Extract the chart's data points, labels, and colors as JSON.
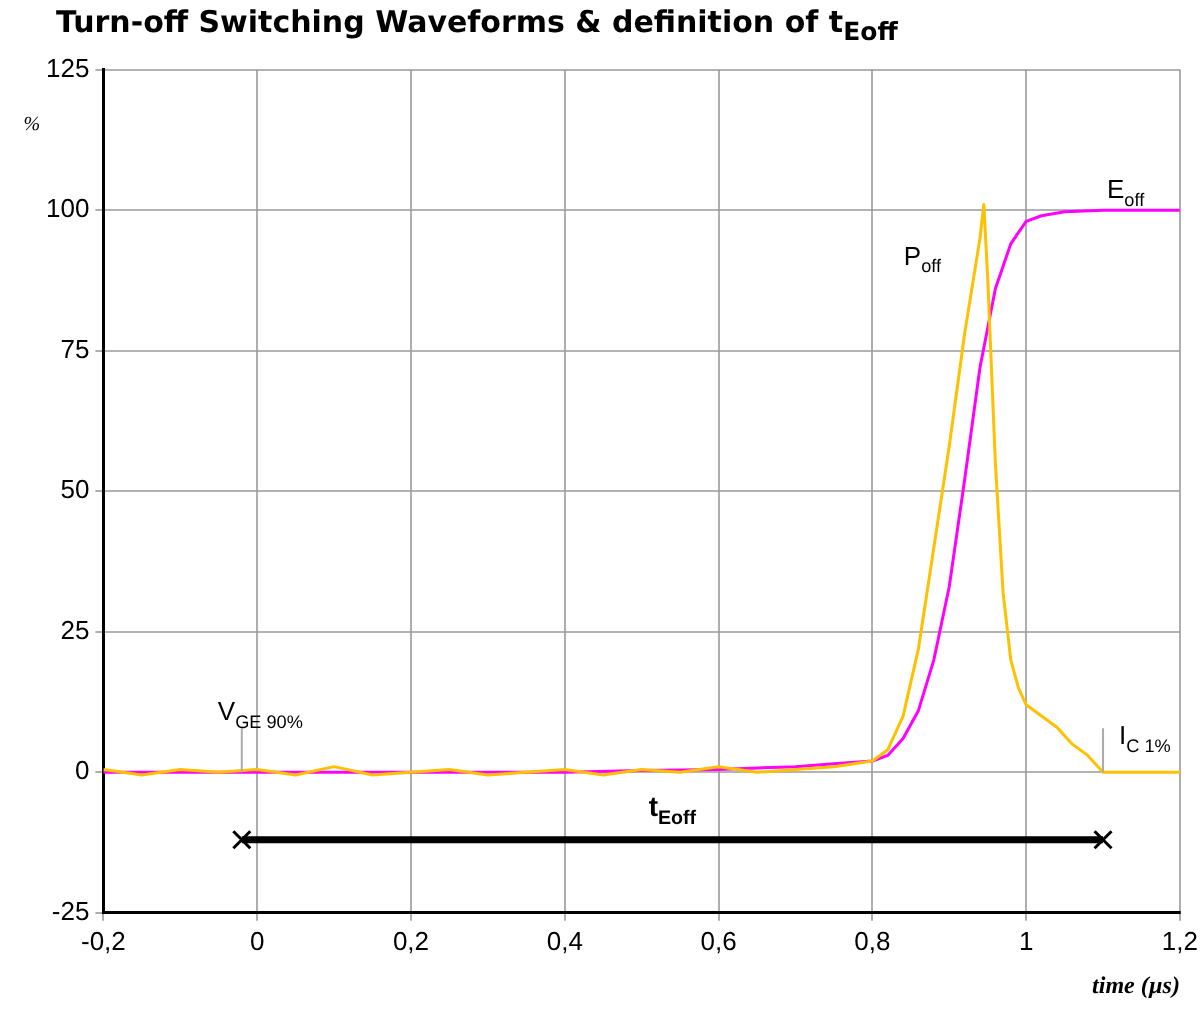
{
  "chart_data": {
    "type": "line",
    "title": "Turn-off Switching Waveforms & definition of t$_{Eoff}$",
    "xlabel": "time (µs)",
    "ylabel": "%",
    "xlim": [
      -0.2,
      1.2
    ],
    "ylim": [
      -25,
      125
    ],
    "xticks": [
      {
        "value": -0.2,
        "label": "-0,2"
      },
      0,
      {
        "value": 0.2,
        "label": "0,2"
      },
      {
        "value": 0.4,
        "label": "0,4"
      },
      {
        "value": 0.6,
        "label": "0,6"
      },
      {
        "value": 0.8,
        "label": "0,8"
      },
      1,
      {
        "value": 1.2,
        "label": "1,2"
      }
    ],
    "yticks": [
      -25,
      0,
      25,
      50,
      75,
      100,
      125
    ],
    "grid": true,
    "legend": false,
    "marker": "none",
    "line_style": "solid",
    "series": [
      {
        "name": "P$_{off}$",
        "color": "#ffc000",
        "x": [
          -0.2,
          -0.15,
          -0.1,
          -0.05,
          0,
          0.05,
          0.1,
          0.15,
          0.2,
          0.25,
          0.3,
          0.35,
          0.4,
          0.45,
          0.5,
          0.55,
          0.6,
          0.65,
          0.7,
          0.75,
          0.8,
          0.82,
          0.84,
          0.86,
          0.88,
          0.9,
          0.92,
          0.94,
          0.945,
          0.95,
          0.96,
          0.97,
          0.98,
          0.99,
          1.0,
          1.02,
          1.04,
          1.06,
          1.08,
          1.1,
          1.15,
          1.2
        ],
        "values": [
          0.5,
          -0.5,
          0.5,
          0,
          0.5,
          -0.5,
          1,
          -0.5,
          0,
          0.5,
          -0.5,
          0,
          0.5,
          -0.5,
          0.5,
          0,
          1,
          0,
          0.5,
          1,
          2,
          4,
          10,
          22,
          40,
          58,
          78,
          95,
          101,
          88,
          55,
          32,
          20,
          15,
          12,
          10,
          8,
          5,
          3,
          0,
          0,
          0
        ]
      },
      {
        "name": "E$_{off}$",
        "color": "#ff00ff",
        "x": [
          -0.2,
          0,
          0.2,
          0.4,
          0.5,
          0.6,
          0.7,
          0.75,
          0.8,
          0.82,
          0.84,
          0.86,
          0.88,
          0.9,
          0.92,
          0.94,
          0.96,
          0.98,
          1.0,
          1.02,
          1.05,
          1.1,
          1.2
        ],
        "values": [
          0,
          0,
          0,
          0,
          0.3,
          0.5,
          1,
          1.5,
          2,
          3,
          6,
          11,
          20,
          33,
          52,
          72,
          86,
          94,
          98,
          99,
          99.7,
          100,
          100
        ]
      },
      {
        "type": "line",
        "color": "#000000",
        "marker": "cross",
        "x": [
          -0.02,
          1.1
        ],
        "values": [
          -12,
          -12
        ]
      }
    ],
    "annotations": [
      {
        "text": "V$_{GE 90%}$",
        "x": -0.02,
        "y": 0
      },
      {
        "text": "I$_{C 1%}$",
        "x": 1.1,
        "y": 0
      },
      "t$_{Eoff}$"
    ]
  }
}
